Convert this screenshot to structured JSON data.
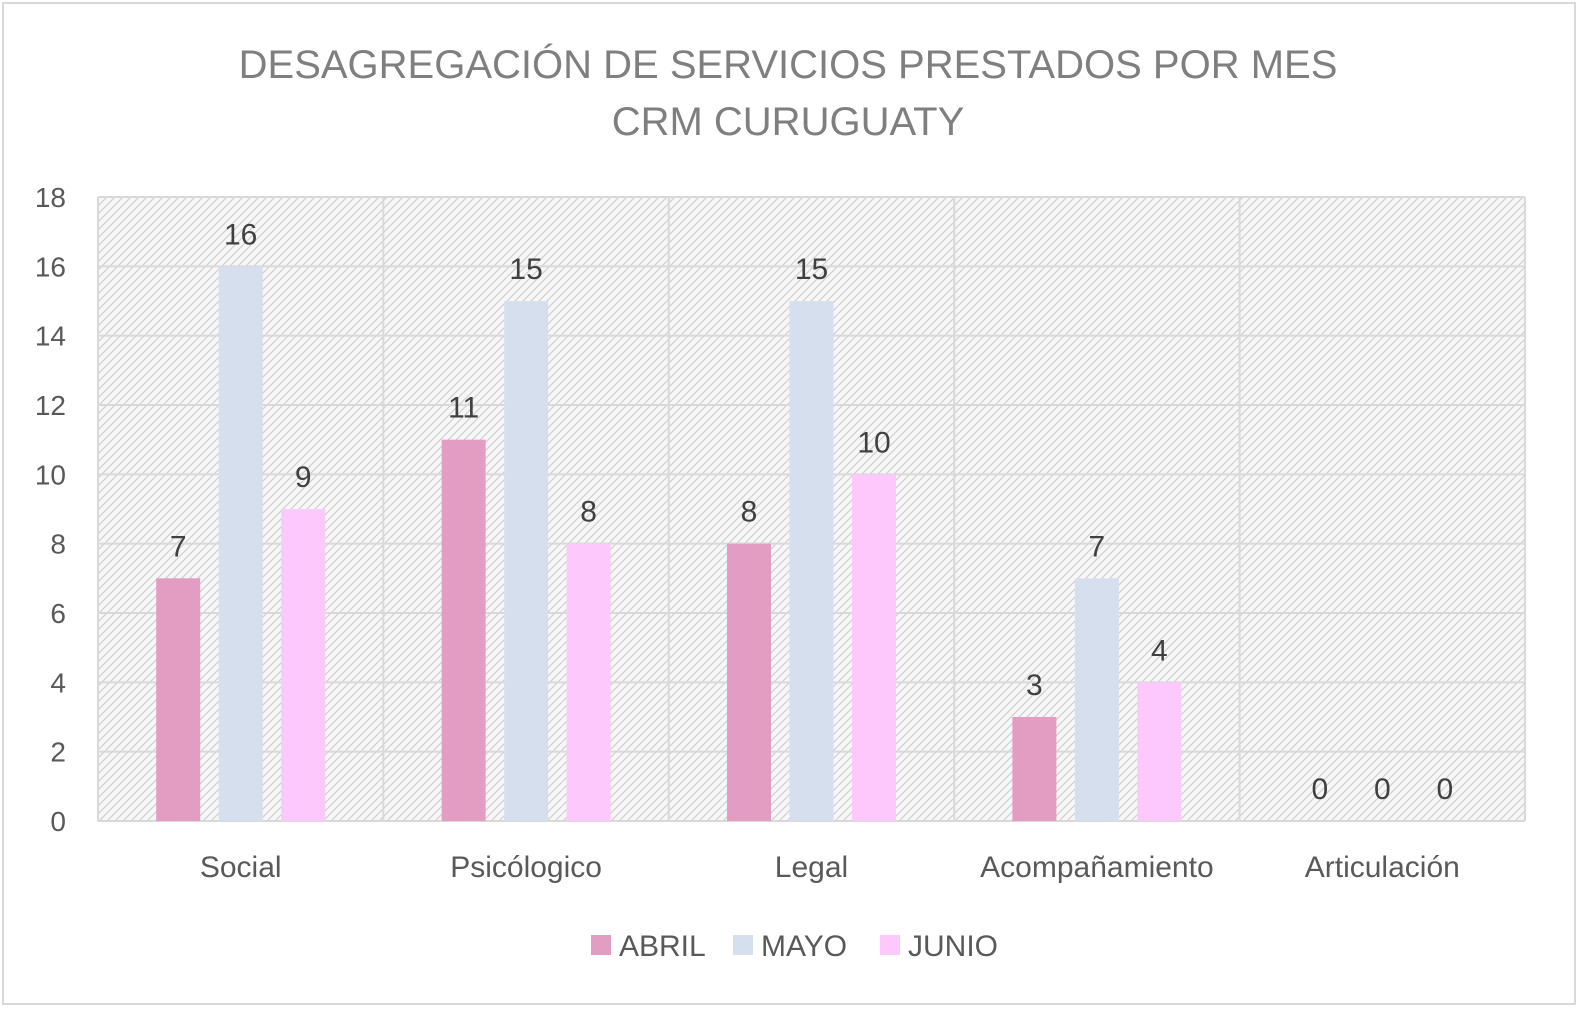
{
  "chart_data": {
    "type": "bar",
    "title": "DESAGREGACIÓN DE SERVICIOS PRESTADOS POR MES",
    "subtitle": "CRM CURUGUATY",
    "categories": [
      "Social",
      "Psicólogico",
      "Legal",
      "Acompañamiento",
      "Articulación"
    ],
    "series": [
      {
        "name": "ABRIL",
        "values": [
          7,
          11,
          8,
          3,
          0
        ],
        "color": "#e39dc3"
      },
      {
        "name": "MAYO",
        "values": [
          16,
          15,
          15,
          7,
          0
        ],
        "color": "#d6dfed"
      },
      {
        "name": "JUNIO",
        "values": [
          9,
          8,
          10,
          4,
          0
        ],
        "color": "#fdc9fc"
      }
    ],
    "ylim": [
      0,
      18
    ],
    "yticks": [
      0,
      2,
      4,
      6,
      8,
      10,
      12,
      14,
      16,
      18
    ],
    "xlabel": "",
    "ylabel": "",
    "grid": true,
    "plot_background": "hatched",
    "legend": "bottom",
    "data_labels": true
  }
}
